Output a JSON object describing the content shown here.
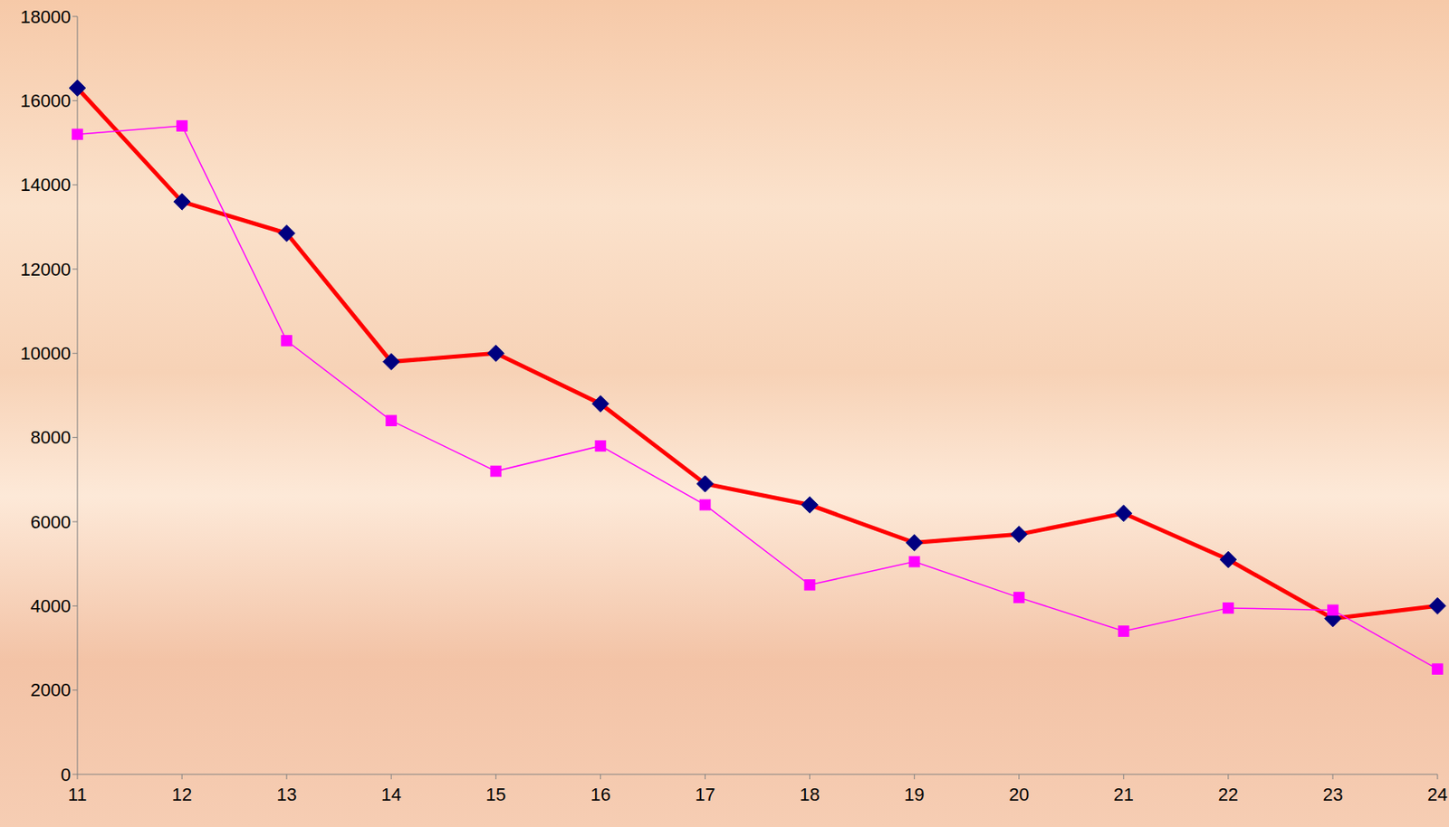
{
  "chart_data": {
    "type": "line",
    "categories": [
      "11",
      "12",
      "13",
      "14",
      "15",
      "16",
      "17",
      "18",
      "19",
      "20",
      "21",
      "22",
      "23",
      "24"
    ],
    "series": [
      {
        "color": "#ff0000",
        "marker": "diamond",
        "values": [
          16300,
          13600,
          12850,
          9800,
          10000,
          8800,
          6900,
          6400,
          5500,
          5700,
          6200,
          5100,
          3700,
          4000
        ]
      },
      {
        "color": "#ff00ff",
        "marker": "square",
        "values": [
          15200,
          15400,
          10300,
          8400,
          7200,
          7800,
          6400,
          4500,
          5050,
          4200,
          3400,
          3950,
          3900,
          2500
        ]
      }
    ],
    "ylim": [
      0,
      18000
    ],
    "yticks": [
      0,
      2000,
      4000,
      6000,
      8000,
      10000,
      12000,
      14000,
      16000,
      18000
    ],
    "grid": false
  }
}
